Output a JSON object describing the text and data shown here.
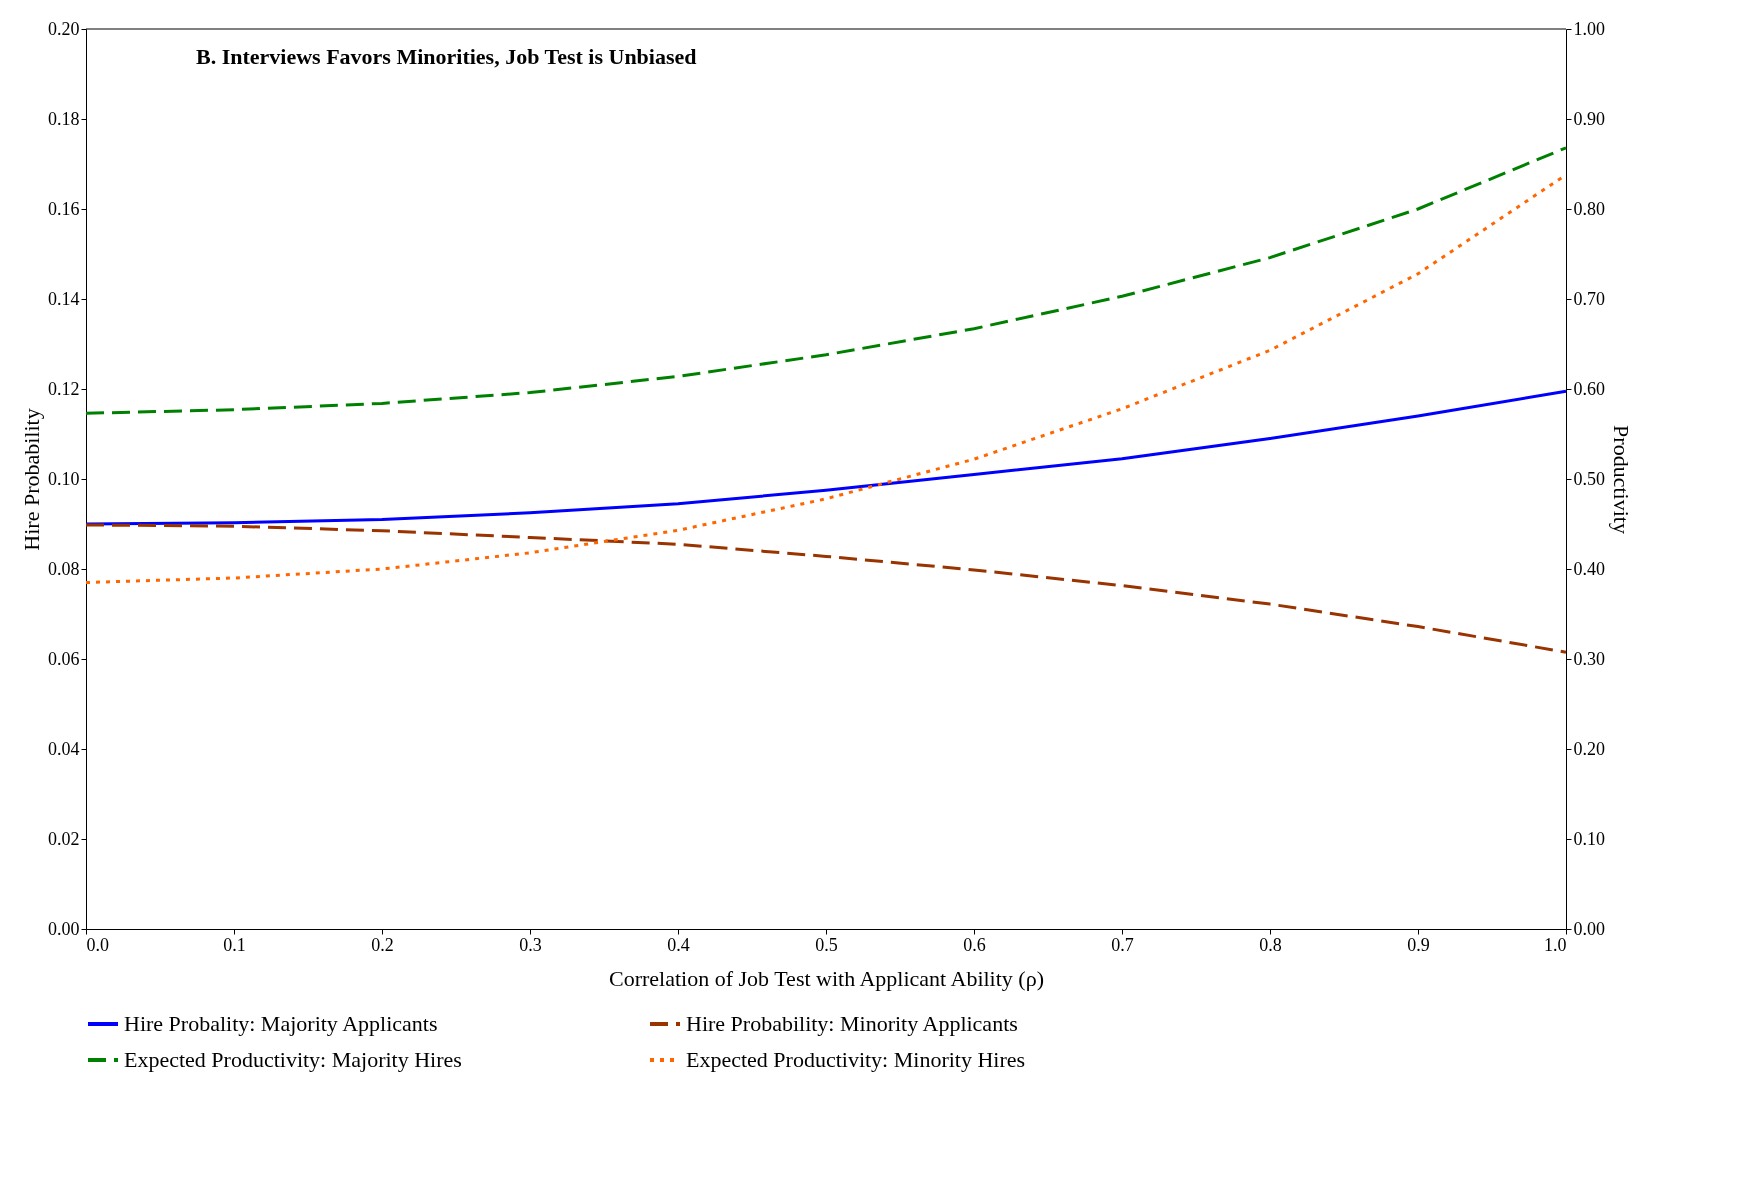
{
  "chart_data": {
    "type": "line",
    "title": "B. Interviews Favors Minorities, Job Test is Unbiased",
    "xlabel": "Correlation of Job Test with Applicant Ability (ρ)",
    "ylabel": "Hire Probability",
    "y2label": "Productivity",
    "x": [
      0.0,
      0.1,
      0.2,
      0.3,
      0.4,
      0.5,
      0.6,
      0.7,
      0.8,
      0.9,
      1.0
    ],
    "series": [
      {
        "name": "Hire Probality: Majority Applicants",
        "color": "#0000ff",
        "line_style": "solid",
        "values": [
          0.09,
          0.0903,
          0.091,
          0.0925,
          0.0945,
          0.0975,
          0.101,
          0.1045,
          0.109,
          0.114,
          0.1195
        ]
      },
      {
        "name": "Hire Probability: Minority Applicants",
        "color": "#993300",
        "line_style": "dashed",
        "values": [
          0.0898,
          0.0895,
          0.0885,
          0.087,
          0.0855,
          0.0828,
          0.0798,
          0.0763,
          0.0722,
          0.0672,
          0.0615
        ]
      },
      {
        "name": "Expected Productivity: Majority Hires",
        "color": "#008000",
        "line_style": "dashed",
        "axis": "y2",
        "values": [
          0.573,
          0.577,
          0.584,
          0.596,
          0.614,
          0.638,
          0.667,
          0.703,
          0.746,
          0.8,
          0.868
        ]
      },
      {
        "name": "Expected Productivity: Minority Hires",
        "color": "#ff6600",
        "line_style": "dotted",
        "axis": "y2",
        "values": [
          0.385,
          0.39,
          0.4,
          0.418,
          0.443,
          0.478,
          0.522,
          0.578,
          0.643,
          0.728,
          0.838
        ]
      }
    ],
    "xlim": [
      0.0,
      1.0
    ],
    "xticks": [
      {
        "value": 0,
        "label": "0.0"
      },
      0.1,
      0.2,
      0.3,
      0.4,
      0.5,
      0.6,
      0.7,
      0.8,
      0.9,
      {
        "value": 1,
        "label": "1.0"
      }
    ],
    "ylim": [
      0,
      0.2
    ],
    "yticks": [
      {
        "value": 0,
        "label": "0.00"
      },
      {
        "value": 0.02,
        "label": "0.02"
      },
      {
        "value": 0.04,
        "label": "0.04"
      },
      {
        "value": 0.06,
        "label": "0.06"
      },
      {
        "value": 0.08,
        "label": "0.08"
      },
      {
        "value": 0.1,
        "label": "0.10"
      },
      {
        "value": 0.12,
        "label": "0.12"
      },
      {
        "value": 0.14,
        "label": "0.14"
      },
      {
        "value": 0.16,
        "label": "0.16"
      },
      {
        "value": 0.18,
        "label": "0.18"
      },
      {
        "value": 0.2,
        "label": "0.20"
      }
    ],
    "y2lim": [
      0,
      1
    ],
    "y2ticks": [
      {
        "value": 0,
        "label": "0.00"
      },
      {
        "value": 0.1,
        "label": "0.10"
      },
      {
        "value": 0.2,
        "label": "0.20"
      },
      {
        "value": 0.3,
        "label": "0.30"
      },
      {
        "value": 0.4,
        "label": "0.40"
      },
      {
        "value": 0.5,
        "label": "0.50"
      },
      {
        "value": 0.6,
        "label": "0.60"
      },
      {
        "value": 0.7,
        "label": "0.70"
      },
      {
        "value": 0.8,
        "label": "0.80"
      },
      {
        "value": 0.9,
        "label": "0.90"
      },
      {
        "value": 1,
        "label": "1.00"
      }
    ],
    "grid": false,
    "legend": "bottom",
    "marker": "none"
  }
}
